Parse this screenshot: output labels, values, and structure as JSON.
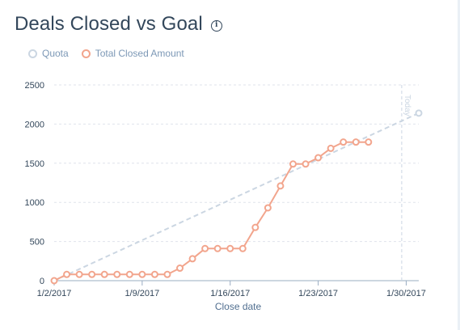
{
  "title": "Deals Closed vs Goal",
  "icons": {
    "info": "info-icon"
  },
  "legend": [
    {
      "label": "Quota",
      "color": "#cbd6e2"
    },
    {
      "label": "Total Closed Amount",
      "color": "#f2a58d"
    }
  ],
  "chart_data": {
    "type": "line",
    "title": "Deals Closed vs Goal",
    "xlabel": "Close date",
    "ylabel": "",
    "ylim": [
      0,
      2500
    ],
    "yticks": [
      0,
      500,
      1000,
      1500,
      2000,
      2500
    ],
    "xticks": [
      "1/2/2017",
      "1/9/2017",
      "1/16/2017",
      "1/23/2017",
      "1/30/2017"
    ],
    "xlim": [
      "2017-01-02",
      "2017-01-31"
    ],
    "grid": true,
    "legend_position": "top-left",
    "today_label": "Today",
    "today_date": "2017-01-29",
    "series": [
      {
        "name": "Quota",
        "style": "dashed",
        "color": "#cbd6e2",
        "points": [
          {
            "x": "2017-01-02",
            "y": 0
          },
          {
            "x": "2017-01-31",
            "y": 2140
          }
        ]
      },
      {
        "name": "Total Closed Amount",
        "style": "solid",
        "color": "#f2a58d",
        "points": [
          {
            "x": "2017-01-02",
            "y": 0
          },
          {
            "x": "2017-01-03",
            "y": 80
          },
          {
            "x": "2017-01-04",
            "y": 80
          },
          {
            "x": "2017-01-05",
            "y": 80
          },
          {
            "x": "2017-01-06",
            "y": 80
          },
          {
            "x": "2017-01-07",
            "y": 80
          },
          {
            "x": "2017-01-08",
            "y": 80
          },
          {
            "x": "2017-01-09",
            "y": 80
          },
          {
            "x": "2017-01-10",
            "y": 80
          },
          {
            "x": "2017-01-11",
            "y": 80
          },
          {
            "x": "2017-01-12",
            "y": 160
          },
          {
            "x": "2017-01-13",
            "y": 280
          },
          {
            "x": "2017-01-14",
            "y": 410
          },
          {
            "x": "2017-01-15",
            "y": 410
          },
          {
            "x": "2017-01-16",
            "y": 410
          },
          {
            "x": "2017-01-17",
            "y": 410
          },
          {
            "x": "2017-01-18",
            "y": 680
          },
          {
            "x": "2017-01-19",
            "y": 930
          },
          {
            "x": "2017-01-20",
            "y": 1210
          },
          {
            "x": "2017-01-21",
            "y": 1490
          },
          {
            "x": "2017-01-22",
            "y": 1490
          },
          {
            "x": "2017-01-23",
            "y": 1570
          },
          {
            "x": "2017-01-24",
            "y": 1690
          },
          {
            "x": "2017-01-25",
            "y": 1770
          },
          {
            "x": "2017-01-26",
            "y": 1770
          },
          {
            "x": "2017-01-27",
            "y": 1770
          }
        ]
      }
    ]
  }
}
